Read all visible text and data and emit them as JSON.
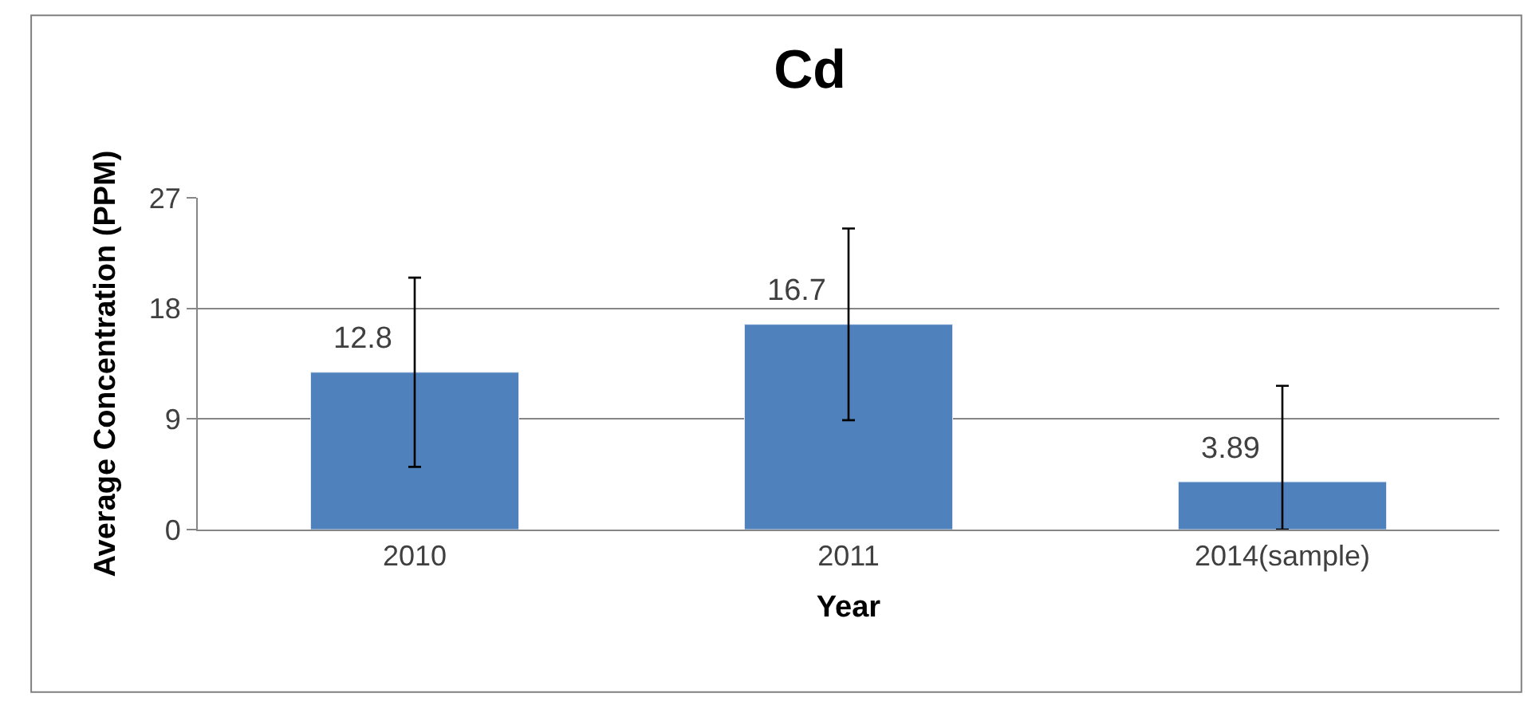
{
  "chart_data": {
    "type": "bar",
    "title": "Cd",
    "xlabel": "Year",
    "ylabel": "Average Concentration (PPM)",
    "categories": [
      "2010",
      "2011",
      "2014(sample)"
    ],
    "values": [
      12.8,
      16.7,
      3.89
    ],
    "errors": [
      7.7,
      7.8,
      [
        0,
        11.7
      ]
    ],
    "color": "#4f81bd",
    "ylim": [
      0,
      27
    ],
    "yticks": [
      0,
      9,
      18,
      27
    ],
    "grid": "y",
    "data_labels": true
  }
}
